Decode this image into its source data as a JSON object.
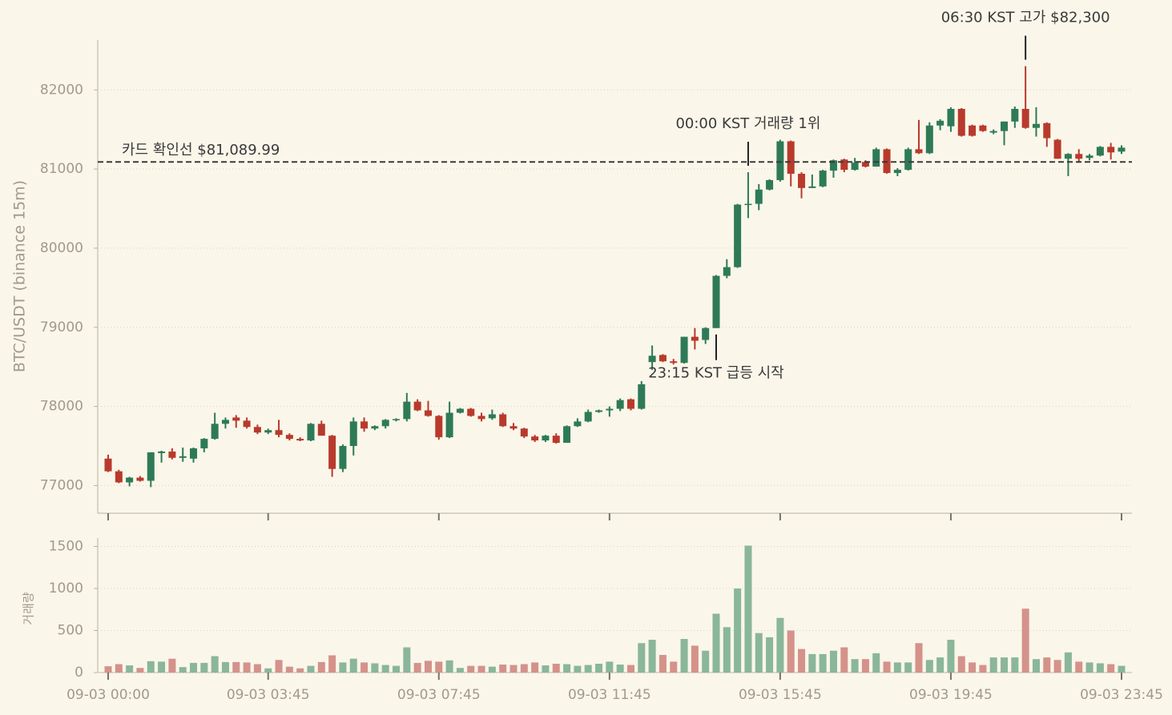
{
  "chart_data": [
    {
      "type": "candlestick",
      "ylabel": "BTC/USDT (binance 15m)",
      "x": [
        "09-03 00:00",
        "09-03 00:15",
        "09-03 00:30",
        "09-03 00:45",
        "09-03 01:00",
        "09-03 01:15",
        "09-03 01:30",
        "09-03 01:45",
        "09-03 02:00",
        "09-03 02:15",
        "09-03 02:30",
        "09-03 02:45",
        "09-03 03:00",
        "09-03 03:15",
        "09-03 03:30",
        "09-03 03:45",
        "09-03 04:00",
        "09-03 04:15",
        "09-03 04:30",
        "09-03 04:45",
        "09-03 05:00",
        "09-03 05:15",
        "09-03 05:30",
        "09-03 05:45",
        "09-03 06:00",
        "09-03 06:15",
        "09-03 06:30",
        "09-03 06:45",
        "09-03 07:00",
        "09-03 07:15",
        "09-03 07:30",
        "09-03 07:45",
        "09-03 08:00",
        "09-03 08:15",
        "09-03 08:30",
        "09-03 08:45",
        "09-03 09:00",
        "09-03 09:15",
        "09-03 09:30",
        "09-03 09:45",
        "09-03 10:00",
        "09-03 10:15",
        "09-03 10:30",
        "09-03 10:45",
        "09-03 11:00",
        "09-03 11:15",
        "09-03 11:30",
        "09-03 11:45",
        "09-03 12:00",
        "09-03 12:15",
        "09-03 12:30",
        "09-03 12:45",
        "09-03 13:00",
        "09-03 13:15",
        "09-03 13:30",
        "09-03 13:45",
        "09-03 14:00",
        "09-03 14:15",
        "09-03 14:30",
        "09-03 14:45",
        "09-03 15:00",
        "09-03 15:15",
        "09-03 15:30",
        "09-03 15:45",
        "09-03 16:00",
        "09-03 16:15",
        "09-03 16:30",
        "09-03 16:45",
        "09-03 17:00",
        "09-03 17:15",
        "09-03 17:30",
        "09-03 17:45",
        "09-03 18:00",
        "09-03 18:15",
        "09-03 18:30",
        "09-03 18:45",
        "09-03 19:00",
        "09-03 19:15",
        "09-03 19:30",
        "09-03 19:45",
        "09-03 20:00",
        "09-03 20:15",
        "09-03 20:30",
        "09-03 20:45",
        "09-03 21:00",
        "09-03 21:15",
        "09-03 21:30",
        "09-03 21:45",
        "09-03 22:00",
        "09-03 22:15",
        "09-03 22:30",
        "09-03 22:45",
        "09-03 23:00",
        "09-03 23:15",
        "09-03 23:30",
        "09-03 23:45"
      ],
      "open": [
        77340,
        77180,
        77040,
        77100,
        77060,
        77410,
        77430,
        77350,
        77340,
        77470,
        77590,
        77780,
        77860,
        77820,
        77740,
        77670,
        77700,
        77640,
        77590,
        77570,
        77780,
        77630,
        77210,
        77500,
        77810,
        77720,
        77750,
        77830,
        77840,
        78060,
        77950,
        77880,
        77610,
        77920,
        77970,
        77880,
        77850,
        77900,
        77750,
        77720,
        77620,
        77570,
        77630,
        77540,
        77750,
        77810,
        77930,
        77950,
        77970,
        78090,
        77970,
        78560,
        78650,
        78570,
        78550,
        78880,
        78840,
        78990,
        79650,
        79760,
        80550,
        80560,
        80740,
        80860,
        81350,
        80940,
        80760,
        80780,
        80980,
        81120,
        80990,
        81090,
        81030,
        81250,
        80950,
        80990,
        81250,
        81200,
        81550,
        81540,
        81760,
        81550,
        81550,
        81460,
        81480,
        81600,
        81760,
        81520,
        81580,
        81370,
        81130,
        81190,
        81140,
        81170,
        81280,
        81220
      ],
      "high": [
        77390,
        77200,
        77110,
        77120,
        77420,
        77440,
        77470,
        77480,
        77480,
        77600,
        77920,
        77860,
        77890,
        77860,
        77770,
        77720,
        77830,
        77660,
        77610,
        77790,
        77820,
        77640,
        77520,
        77860,
        77860,
        77760,
        77840,
        77850,
        78170,
        78090,
        78070,
        77890,
        78060,
        77980,
        77980,
        77920,
        77960,
        77920,
        77790,
        77730,
        77640,
        77640,
        77660,
        77760,
        77850,
        77960,
        77960,
        78000,
        78100,
        78100,
        78320,
        78770,
        78660,
        78600,
        78880,
        78990,
        79000,
        79660,
        79860,
        80560,
        80960,
        80810,
        80870,
        81370,
        81360,
        80960,
        80930,
        80990,
        81120,
        81130,
        81140,
        81110,
        81270,
        81260,
        81010,
        81270,
        81620,
        81590,
        81630,
        81780,
        81770,
        81560,
        81560,
        81500,
        81600,
        81790,
        82300,
        81780,
        81590,
        81380,
        81200,
        81250,
        81190,
        81290,
        81330,
        81300
      ],
      "low": [
        77170,
        77030,
        76990,
        77050,
        76980,
        77290,
        77330,
        77300,
        77290,
        77420,
        77580,
        77720,
        77730,
        77720,
        77650,
        77650,
        77610,
        77570,
        77560,
        77560,
        77630,
        77110,
        77170,
        77380,
        77680,
        77700,
        77720,
        77810,
        77810,
        77940,
        77870,
        77580,
        77600,
        77910,
        77870,
        77810,
        77830,
        77740,
        77700,
        77600,
        77550,
        77550,
        77530,
        77540,
        77740,
        77800,
        77920,
        77870,
        77940,
        77950,
        77960,
        78460,
        78560,
        78530,
        78540,
        78720,
        78790,
        78990,
        79620,
        79750,
        80380,
        80480,
        80730,
        80840,
        80780,
        80630,
        80760,
        80770,
        80890,
        80960,
        80980,
        81020,
        81030,
        80940,
        80910,
        80980,
        81190,
        81190,
        81490,
        81470,
        81410,
        81410,
        81470,
        81440,
        81300,
        81520,
        81510,
        81410,
        81280,
        81130,
        80910,
        81080,
        81110,
        81160,
        81120,
        81190
      ],
      "close": [
        77180,
        77040,
        77100,
        77060,
        77420,
        77430,
        77350,
        77370,
        77470,
        77590,
        77780,
        77830,
        77820,
        77740,
        77670,
        77700,
        77640,
        77590,
        77570,
        77780,
        77630,
        77210,
        77500,
        77810,
        77720,
        77750,
        77830,
        77840,
        78060,
        77950,
        77880,
        77610,
        77920,
        77970,
        77880,
        77840,
        77900,
        77750,
        77720,
        77620,
        77570,
        77630,
        77540,
        77750,
        77810,
        77930,
        77950,
        77970,
        78080,
        77970,
        78280,
        78640,
        78570,
        78550,
        78880,
        78830,
        78990,
        79650,
        79760,
        80550,
        80560,
        80740,
        80860,
        81350,
        80940,
        80760,
        80780,
        80980,
        81110,
        80990,
        81080,
        81030,
        81250,
        80950,
        80990,
        81250,
        81200,
        81550,
        81610,
        81760,
        81420,
        81420,
        81480,
        81480,
        81600,
        81760,
        81520,
        81570,
        81390,
        81130,
        81190,
        81130,
        81170,
        81280,
        81210,
        81270
      ],
      "up_color": "#2e7a57",
      "down_color": "#b83a2c",
      "ylim": [
        76650,
        82630
      ],
      "yticks": [
        77000,
        78000,
        79000,
        80000,
        81000,
        82000
      ],
      "grid": true,
      "reference_line": {
        "value": 81089.99,
        "label": "카드 확인선 $81,089.99"
      },
      "annotations": [
        {
          "text": "06:30 KST 고가 $82,300",
          "x": "09-03 21:30",
          "y": 82300,
          "position": "above"
        },
        {
          "text": "00:00 KST 거래량 1위",
          "x": "09-03 15:00",
          "position": "above"
        },
        {
          "text": "23:15 KST 급등 시작",
          "x": "09-03 14:15",
          "position": "below"
        }
      ]
    },
    {
      "type": "bar",
      "ylabel": "거래량",
      "values": [
        75,
        100,
        85,
        55,
        135,
        130,
        165,
        65,
        115,
        115,
        195,
        125,
        125,
        120,
        100,
        50,
        150,
        70,
        50,
        80,
        125,
        205,
        120,
        165,
        120,
        110,
        90,
        80,
        300,
        115,
        140,
        130,
        145,
        55,
        80,
        80,
        70,
        95,
        90,
        100,
        120,
        85,
        105,
        100,
        80,
        90,
        105,
        130,
        95,
        90,
        350,
        390,
        210,
        130,
        400,
        320,
        260,
        700,
        540,
        1000,
        1510,
        470,
        420,
        650,
        500,
        280,
        220,
        220,
        260,
        300,
        160,
        160,
        230,
        130,
        120,
        120,
        350,
        150,
        180,
        390,
        195,
        120,
        90,
        180,
        180,
        180,
        760,
        160,
        180,
        150,
        240,
        130,
        120,
        110,
        100,
        80
      ],
      "up_color": "#8ab69a",
      "down_color": "#d4928a",
      "ylim": [
        0,
        1600
      ],
      "yticks": [
        0,
        500,
        1000,
        1500
      ],
      "grid": true,
      "xticks": [
        "09-03 00:00",
        "09-03 03:45",
        "09-03 07:45",
        "09-03 11:45",
        "09-03 15:45",
        "09-03 19:45",
        "09-03 23:45"
      ]
    }
  ]
}
